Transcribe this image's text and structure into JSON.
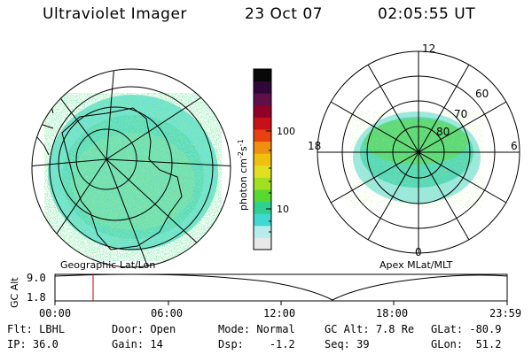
{
  "header": {
    "instrument": "Ultraviolet Imager",
    "date": "23 Oct 07",
    "time": "02:05:55 UT"
  },
  "left_panel": {
    "label": "Geographic Lat/Lon"
  },
  "right_panel": {
    "label": "Apex MLat/MLT",
    "mlt_labels": [
      "12",
      "18",
      "6",
      "0"
    ],
    "mlat_labels": [
      "60",
      "70",
      "80"
    ]
  },
  "colorbar": {
    "unit": "photon cm",
    "unit_sup1": "-2",
    "unit_mid": "s",
    "unit_sup2": "-1",
    "tick_labels": [
      "100",
      "10"
    ],
    "colors": [
      "#e8e8e8",
      "#b8ecec",
      "#40d8d0",
      "#30d090",
      "#58d830",
      "#a0e020",
      "#e0e020",
      "#f0c010",
      "#f09010",
      "#e84010",
      "#c81018",
      "#900028",
      "#601048",
      "#300838",
      "#080808"
    ]
  },
  "altitude_plot": {
    "ylabel": "GC Alt",
    "y_ticks": [
      "9.0",
      "1.8"
    ],
    "x_ticks": [
      "00:00",
      "06:00",
      "12:00",
      "18:00",
      "23:59"
    ]
  },
  "status": {
    "row1": [
      {
        "label": "Flt:",
        "value": "LBHL"
      },
      {
        "label": "Door:",
        "value": "Open"
      },
      {
        "label": "Mode:",
        "value": "Normal"
      },
      {
        "label": "GC Alt:",
        "value": "7.8 Re"
      },
      {
        "label": "GLat:",
        "value": "-80.9"
      }
    ],
    "row2": [
      {
        "label": "IP:",
        "value": "36.0"
      },
      {
        "label": "Gain:",
        "value": "14"
      },
      {
        "label": "Dsp:",
        "value": "-1.2"
      },
      {
        "label": "Seq:",
        "value": "39"
      },
      {
        "label": "GLon:",
        "value": "51.2"
      }
    ]
  }
}
